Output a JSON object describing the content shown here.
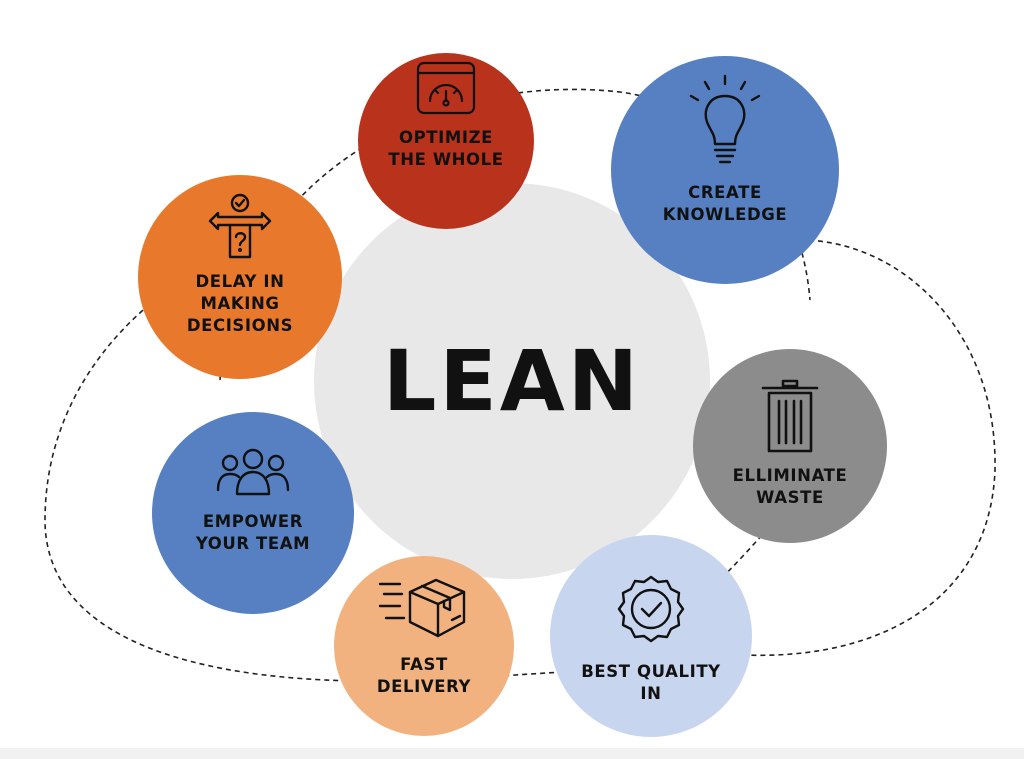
{
  "center": {
    "title": "LEAN",
    "color": "#e8e8e9"
  },
  "principles": [
    {
      "id": "optimize",
      "label": "OPTIMIZE\nTHE WHOLE",
      "color": "#b9321c",
      "icon": "speedometer-icon"
    },
    {
      "id": "knowledge",
      "label": "CREATE\nKNOWLEDGE",
      "color": "#5680c1",
      "icon": "lightbulb-icon"
    },
    {
      "id": "waste",
      "label": "ELLIMINATE\nWASTE",
      "color": "#8c8c8d",
      "icon": "trash-icon"
    },
    {
      "id": "quality",
      "label": "BEST QUALITY\nIN",
      "color": "#c8d5ef",
      "icon": "quality-badge-icon"
    },
    {
      "id": "delivery",
      "label": "FAST\nDELIVERY",
      "color": "#f2b27f",
      "icon": "delivery-box-icon"
    },
    {
      "id": "team",
      "label": "EMPOWER\nYOUR TEAM",
      "color": "#5680c1",
      "icon": "team-icon"
    },
    {
      "id": "decisions",
      "label": "DELAY IN\nMAKING\nDECISIONS",
      "color": "#e8792c",
      "icon": "decision-signpost-icon"
    }
  ]
}
